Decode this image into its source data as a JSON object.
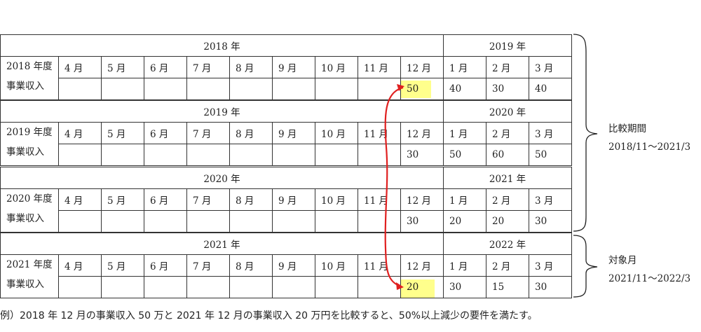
{
  "fiscal_years": [
    {
      "year_label": "2018 年",
      "next_year_label": "2019 年",
      "fy_label": "2018 年度",
      "row_label": "事業収入",
      "months": [
        "4 月",
        "5 月",
        "6 月",
        "7 月",
        "8 月",
        "9 月",
        "10 月",
        "11 月",
        "12 月",
        "1 月",
        "2 月",
        "3 月"
      ],
      "values": [
        "",
        "",
        "",
        "",
        "",
        "",
        "",
        "",
        "50",
        "40",
        "30",
        "40"
      ]
    },
    {
      "year_label": "2019 年",
      "next_year_label": "2020 年",
      "fy_label": "2019 年度",
      "row_label": "事業収入",
      "months": [
        "4 月",
        "5 月",
        "6 月",
        "7 月",
        "8 月",
        "9 月",
        "10 月",
        "11 月",
        "12 月",
        "1 月",
        "2 月",
        "3 月"
      ],
      "values": [
        "",
        "",
        "",
        "",
        "",
        "",
        "",
        "",
        "30",
        "50",
        "60",
        "50"
      ]
    },
    {
      "year_label": "2020 年",
      "next_year_label": "2021 年",
      "fy_label": "2020 年度",
      "row_label": "事業収入",
      "months": [
        "4 月",
        "5 月",
        "6 月",
        "7 月",
        "8 月",
        "9 月",
        "10 月",
        "11 月",
        "12 月",
        "1 月",
        "2 月",
        "3 月"
      ],
      "values": [
        "",
        "",
        "",
        "",
        "",
        "",
        "",
        "",
        "30",
        "20",
        "20",
        "30"
      ]
    },
    {
      "year_label": "2021 年",
      "next_year_label": "2022 年",
      "fy_label": "2021 年度",
      "row_label": "事業収入",
      "months": [
        "4 月",
        "5 月",
        "6 月",
        "7 月",
        "8 月",
        "9 月",
        "10 月",
        "11 月",
        "12 月",
        "1 月",
        "2 月",
        "3 月"
      ],
      "values": [
        "",
        "",
        "",
        "",
        "",
        "",
        "",
        "",
        "20",
        "30",
        "15",
        "30"
      ]
    }
  ],
  "comparison_period": {
    "title": "比較期間",
    "range": "2018/11～2021/3"
  },
  "target_month": {
    "title": "対象月",
    "range": "2021/11～2022/3"
  },
  "caption": "例）2018 年 12 月の事業収入 50 万と 2021 年 12 月の事業収入 20 万円を比較すると、50%以上減少の要件を満たす。",
  "colors": {
    "highlight": "#ffff8c",
    "arrow": "#e02020",
    "border": "#333333"
  }
}
